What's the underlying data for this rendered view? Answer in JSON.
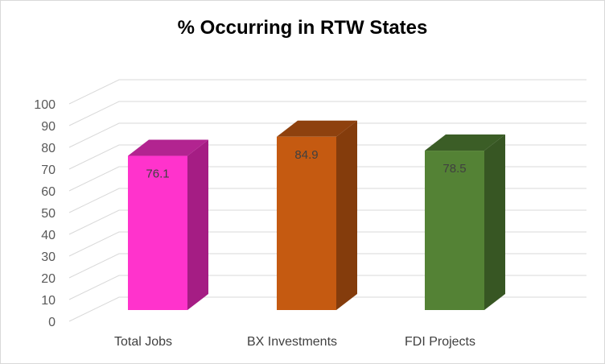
{
  "chart_data": {
    "type": "bar",
    "title": "% Occurring in RTW States",
    "categories": [
      "Total Jobs",
      "BX Investments",
      "FDI Projects"
    ],
    "values": [
      76.1,
      84.9,
      78.5
    ],
    "data_labels": [
      "76.1",
      "84.9",
      "78.5"
    ],
    "ylim": [
      0,
      100
    ],
    "yticks": [
      "0",
      "10",
      "20",
      "30",
      "40",
      "50",
      "60",
      "70",
      "80",
      "90",
      "100"
    ],
    "grid": true,
    "legend": "none",
    "style": "3d-column",
    "colors": {
      "front": [
        "#ff33cc",
        "#c55a11",
        "#548235"
      ],
      "side": [
        "#a51d84",
        "#843c0c",
        "#375623"
      ],
      "top": [
        "#b22490",
        "#8e410e",
        "#3b5d26"
      ],
      "grid": "#d9d9d9"
    }
  }
}
